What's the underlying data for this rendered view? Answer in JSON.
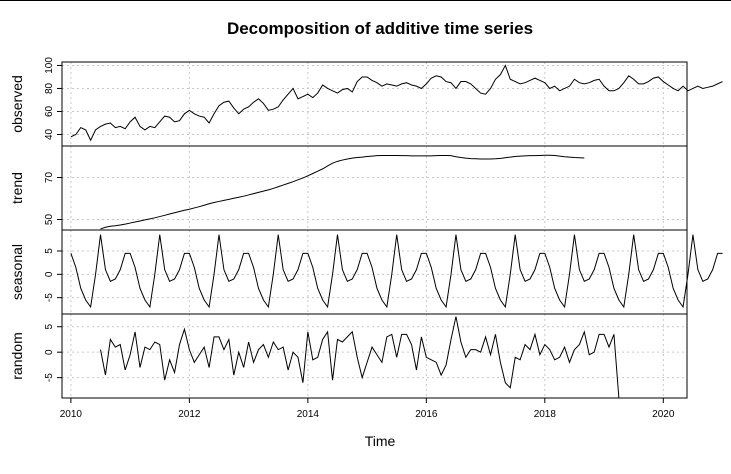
{
  "chart_data": {
    "type": "line",
    "title": "Decomposition of additive time series",
    "xlabel": "Time",
    "xlim": [
      2009.85,
      2020.4
    ],
    "x_ticks": [
      2010,
      2012,
      2014,
      2016,
      2018,
      2020
    ],
    "x_tick_labels": [
      "2010",
      "2012",
      "2014",
      "2016",
      "2018",
      "2020"
    ],
    "grid": true,
    "frequency": 12,
    "start": 2010.0,
    "panels": [
      {
        "name": "observed",
        "ylabel": "observed",
        "ylim": [
          30,
          103
        ],
        "y_ticks": [
          40,
          60,
          80,
          100
        ],
        "y_tick_labels": [
          "40",
          "60",
          "80",
          "100"
        ],
        "values": [
          38,
          40,
          46,
          44,
          35,
          44,
          47,
          49,
          50,
          46,
          47,
          45,
          51,
          55,
          47,
          44,
          47,
          46,
          51,
          56,
          55,
          51,
          52,
          58,
          61,
          58,
          56,
          55,
          50,
          58,
          65,
          68,
          69,
          63,
          58,
          62,
          64,
          68,
          71,
          67,
          61,
          62,
          64,
          70,
          75,
          80,
          71,
          73,
          75,
          72,
          76,
          83,
          80,
          78,
          76,
          79,
          80,
          77,
          86,
          90,
          90,
          87,
          85,
          82,
          84,
          83,
          82,
          84,
          85,
          83,
          82,
          80,
          84,
          89,
          91,
          90,
          86,
          85,
          80,
          86,
          86,
          84,
          80,
          76,
          75,
          80,
          88,
          92,
          100,
          88,
          86,
          84,
          85,
          87,
          89,
          87,
          85,
          80,
          82,
          78,
          80,
          82,
          88,
          85,
          84,
          85,
          87,
          88,
          82,
          78,
          78,
          80,
          85,
          91,
          88,
          84,
          84,
          86,
          89,
          90,
          86,
          83,
          80,
          78,
          82,
          78,
          80,
          82,
          80,
          81,
          82,
          84,
          86
        ]
      },
      {
        "name": "trend",
        "ylabel": "trend",
        "ylim": [
          45,
          85
        ],
        "y_ticks": [
          50,
          70
        ],
        "y_tick_labels": [
          "50",
          "70"
        ],
        "start": 2010.5,
        "values": [
          45.5,
          46.3,
          46.8,
          47.0,
          47.4,
          47.8,
          48.3,
          48.8,
          49.3,
          49.8,
          50.3,
          50.8,
          51.4,
          52.0,
          52.6,
          53.2,
          53.8,
          54.4,
          54.9,
          55.5,
          56.1,
          56.8,
          57.5,
          58.1,
          58.6,
          59.1,
          59.6,
          60.1,
          60.6,
          61.1,
          61.7,
          62.3,
          62.9,
          63.5,
          64.1,
          64.8,
          65.6,
          66.4,
          67.2,
          68.0,
          68.9,
          69.8,
          70.8,
          71.9,
          73.0,
          74.1,
          75.5,
          76.8,
          77.7,
          78.3,
          78.8,
          79.2,
          79.5,
          79.7,
          80.0,
          80.2,
          80.4,
          80.5,
          80.5,
          80.5,
          80.5,
          80.4,
          80.4,
          80.3,
          80.3,
          80.3,
          80.3,
          80.3,
          80.4,
          80.5,
          80.5,
          80.4,
          79.9,
          79.5,
          79.2,
          79.0,
          78.9,
          78.8,
          78.8,
          78.8,
          78.9,
          79.1,
          79.4,
          79.7,
          80.0,
          80.2,
          80.3,
          80.4,
          80.4,
          80.5,
          80.6,
          80.6,
          80.5,
          80.2,
          79.9,
          79.7,
          79.5,
          79.4,
          79.3
        ]
      },
      {
        "name": "seasonal",
        "ylabel": "seasonal",
        "ylim": [
          -8.5,
          9.5
        ],
        "y_ticks": [
          -5,
          0,
          5
        ],
        "y_tick_labels": [
          "-5",
          "0",
          "5"
        ],
        "pattern": [
          4.5,
          1.5,
          -3.0,
          -5.5,
          -7.0,
          0.0,
          8.5,
          1.0,
          -1.5,
          -1.0,
          1.0,
          4.5
        ]
      },
      {
        "name": "random",
        "ylabel": "random",
        "ylim": [
          -9,
          7.5
        ],
        "y_ticks": [
          -5,
          0,
          5
        ],
        "y_tick_labels": [
          "-5",
          "0",
          "5"
        ],
        "start": 2010.5,
        "values": [
          0.5,
          -4.5,
          2.5,
          1.0,
          1.5,
          -3.5,
          -0.5,
          4.0,
          -3.0,
          1.0,
          0.5,
          2.0,
          1.5,
          -5.5,
          -1.5,
          -4.0,
          1.5,
          4.5,
          0.5,
          -2.0,
          -0.5,
          1.0,
          -3.0,
          3.0,
          3.0,
          0.5,
          2.5,
          -4.5,
          0.0,
          -3.0,
          2.0,
          -2.0,
          0.5,
          1.5,
          -1.0,
          2.0,
          0.5,
          1.0,
          -3.5,
          0.0,
          -1.0,
          -6.0,
          4.0,
          -1.5,
          -1.0,
          2.5,
          4.0,
          -5.5,
          2.5,
          2.0,
          3.0,
          4.0,
          -1.0,
          -5.0,
          -2.0,
          1.0,
          -0.5,
          -2.0,
          3.0,
          3.5,
          -1.0,
          3.5,
          3.5,
          1.5,
          -3.5,
          3.0,
          -1.0,
          -1.5,
          -2.0,
          -4.5,
          -2.5,
          2.5,
          7.0,
          2.0,
          -1.0,
          0.5,
          0.5,
          0.0,
          3.0,
          -0.5,
          3.5,
          -2.0,
          -6.0,
          -7.0,
          -1.0,
          -1.5,
          1.5,
          0.5,
          3.5,
          -0.5,
          1.5,
          0.5,
          -1.5,
          -1.0,
          1.0,
          -2.0,
          0.5,
          1.5,
          4.0,
          -0.5,
          0.0,
          3.5,
          3.5,
          1.0,
          3.5,
          -9.0
        ]
      }
    ]
  }
}
